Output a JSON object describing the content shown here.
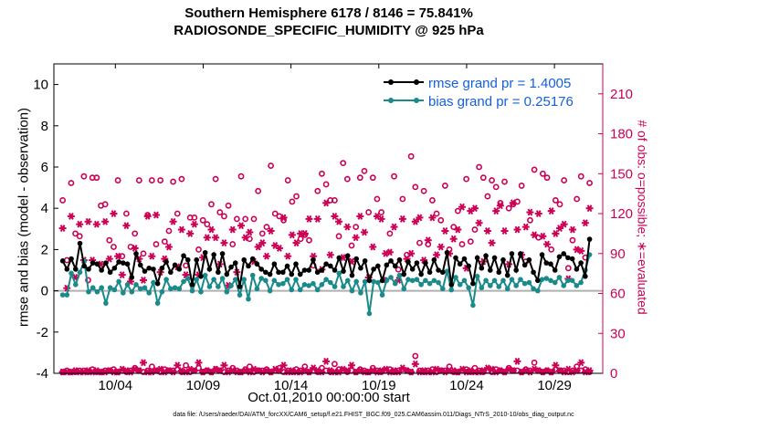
{
  "chart_data": {
    "type": "line",
    "title": "Southern Hemisphere 6178 / 8146 = 75.841%",
    "subtitle": "RADIOSONDE_SPECIFIC_HUMIDITY @ 925 hPa",
    "xlabel": "Oct.01,2010 00:00:00 start",
    "ylabel_left": "rmse and bias (model - observation)",
    "ylabel_right": "# of obs: o=possible; ∗=evaluated",
    "footnote": "data file: /Users/raeder/DAI/ATM_forcXX/CAM6_setup/f.e21.FHIST_BGC.f09_025.CAM6assim.011/Diags_NTrS_2010-10/obs_diag_output.nc",
    "x_range": [
      0.5,
      31.75
    ],
    "x_ticks": [
      4,
      9,
      14,
      19,
      24,
      29
    ],
    "x_tick_labels": [
      "10/04",
      "10/09",
      "10/14",
      "10/19",
      "10/24",
      "10/29"
    ],
    "ylim": [
      -4,
      11
    ],
    "y_ticks": [
      -4,
      -2,
      0,
      2,
      4,
      6,
      8,
      10
    ],
    "y2lim": [
      0,
      232.5
    ],
    "y2_ticks": [
      0,
      30,
      60,
      90,
      120,
      150,
      180,
      210
    ],
    "legend_position": "top-right",
    "series": [
      {
        "name": "rmse",
        "legend": "rmse grand pr = 1.4005",
        "color": "#000000",
        "values": [
          1.45,
          1.05,
          1.55,
          1.05,
          2.3,
          1.2,
          1.05,
          1.35,
          1.3,
          1.0,
          1.35,
          0.9,
          1.1,
          1.4,
          1.35,
          1.3,
          0.65,
          1.8,
          1.25,
          0.95,
          1.1,
          1.05,
          0.35,
          1.1,
          1.4,
          0.9,
          1.25,
          1.05,
          1.7,
          1.5,
          0.3,
          1.5,
          0.7,
          1.85,
          1.05,
          1.75,
          0.9,
          1.8,
          0.8,
          1.15,
          1.35,
          0.2,
          1.5,
          1.2,
          1.55,
          1.3,
          1.05,
          0.9,
          0.8,
          1.3,
          0.9,
          0.9,
          1.2,
          0.8,
          1.3,
          0.8,
          1.0,
          1.0,
          1.5,
          0.9,
          1.0,
          1.3,
          1.2,
          1.0,
          1.6,
          0.95,
          1.7,
          0.75,
          1.55,
          1.1,
          1.45,
          0.5,
          1.05,
          1.2,
          0.5,
          1.25,
          1.45,
          1.2,
          1.5,
          0.8,
          1.4,
          1.05,
          1.35,
          0.8,
          1.35,
          0.9,
          1.5,
          1.0,
          0.9,
          1.85,
          0.3,
          1.6,
          1.3,
          1.55,
          1.2,
          0.35,
          1.6,
          1.1,
          1.7,
          1.0,
          1.6,
          0.9,
          1.5,
          0.75,
          1.8,
          1.0,
          1.8,
          1.25,
          1.5,
          0.9,
          0.5,
          1.75,
          1.35,
          1.3,
          1.0,
          1.65,
          1.8,
          1.6,
          1.55,
          1.05,
          1.35,
          0.7,
          2.5
        ]
      },
      {
        "name": "bias",
        "legend": "bias grand pr = 0.25176",
        "color": "#1a8a8a",
        "values": [
          -0.2,
          -0.2,
          0.85,
          0.3,
          0.9,
          1.45,
          -0.05,
          0.15,
          -0.05,
          0.15,
          -0.6,
          0.15,
          0.05,
          0.45,
          -0.1,
          0.3,
          -0.05,
          0.3,
          0.1,
          0.15,
          -0.1,
          0.4,
          -0.6,
          -0.05,
          0.55,
          0.1,
          0.15,
          0.1,
          0.45,
          0.6,
          0.0,
          0.55,
          -0.05,
          0.75,
          0.2,
          0.55,
          0.2,
          0.6,
          -0.05,
          0.25,
          0.55,
          -0.2,
          0.55,
          -0.4,
          0.75,
          0.1,
          0.6,
          0.5,
          0.0,
          0.5,
          0.3,
          0.35,
          0.55,
          0.05,
          0.55,
          0.05,
          0.3,
          0.25,
          0.35,
          0.05,
          0.3,
          0.55,
          0.4,
          0.2,
          0.85,
          0.2,
          0.5,
          0.0,
          0.45,
          -0.1,
          0.45,
          -1.1,
          0.45,
          0.4,
          -0.2,
          0.5,
          0.65,
          0.35,
          0.75,
          0.1,
          0.55,
          0.5,
          0.55,
          0.3,
          0.5,
          0.35,
          0.5,
          0.4,
          0.1,
          0.95,
          0.05,
          0.65,
          0.3,
          0.5,
          0.15,
          -0.7,
          0.7,
          0.15,
          0.5,
          0.25,
          0.5,
          0.2,
          0.5,
          0.1,
          0.55,
          0.25,
          0.55,
          0.35,
          0.4,
          0.1,
          0.0,
          0.55,
          0.6,
          0.5,
          0.4,
          0.65,
          0.25,
          0.5,
          0.5,
          0.25,
          0.4,
          1.0,
          1.75
        ]
      },
      {
        "name": "possible",
        "marker": "o",
        "axis": "right",
        "color": "#cc0055",
        "values": [
          130,
          85,
          143,
          105,
          103,
          148,
          70,
          147,
          147,
          126,
          127,
          100,
          95,
          145,
          88,
          120,
          95,
          105,
          145,
          90,
          119,
          145,
          97,
          145,
          99,
          107,
          144,
          120,
          146,
          81,
          117,
          117,
          93,
          115,
          112,
          127,
          146,
          121,
          118,
          126,
          97,
          116,
          148,
          116,
          101,
          116,
          137,
          105,
          110,
          156,
          120,
          118,
          115,
          145,
          129,
          133,
          101,
          104,
          100,
          81,
          137,
          150,
          142,
          130,
          130,
          103,
          158,
          146,
          96,
          110,
          147,
          152,
          121,
          147,
          131,
          121,
          70,
          105,
          148,
          78,
          131,
          89,
          163,
          140,
          98,
          137,
          97,
          130,
          120,
          115,
          141,
          93,
          110,
          122,
          97,
          146,
          99,
          108,
          155,
          147,
          133,
          145,
          140,
          128,
          144,
          124,
          127,
          129,
          141,
          84,
          115,
          153,
          102,
          150,
          147,
          93,
          130,
          127,
          145,
          79,
          100,
          131,
          148,
          87,
          143
        ]
      },
      {
        "name": "evaluated",
        "marker": "*",
        "axis": "right",
        "color": "#cc0055",
        "values": [
          109,
          64,
          118,
          72,
          112,
          85,
          114,
          85,
          112,
          82,
          114,
          86,
          120,
          88,
          74,
          111,
          69,
          94,
          86,
          70,
          118,
          88,
          119,
          76,
          86,
          95,
          114,
          80,
          108,
          74,
          105,
          112,
          74,
          87,
          102,
          108,
          102,
          82,
          98,
          66,
          108,
          76,
          111,
          102,
          106,
          84,
          95,
          98,
          88,
          107,
          96,
          94,
          117,
          88,
          104,
          98,
          105,
          105,
          116,
          88,
          116,
          78,
          128,
          89,
          118,
          114,
          87,
          110,
          84,
          102,
          118,
          106,
          72,
          95,
          118,
          116,
          90,
          91,
          110,
          70,
          116,
          86,
          90,
          114,
          117,
          85,
          100,
          117,
          89,
          95,
          107,
          90,
          101,
          108,
          125,
          79,
          122,
          124,
          113,
          84,
          107,
          98,
          122,
          126,
          107,
          82,
          128,
          108,
          89,
          110,
          121,
          104,
          120,
          103,
          97,
          122,
          105,
          109,
          112,
          71,
          108,
          93,
          92,
          113,
          124
        ]
      },
      {
        "name": "possible_low",
        "marker": "o",
        "axis": "right",
        "color": "#cc0055",
        "values": [
          1,
          2,
          1,
          1,
          2,
          2,
          1,
          3,
          1,
          1,
          2,
          2,
          3,
          1,
          2,
          1,
          2,
          4,
          2,
          1,
          2,
          5,
          2,
          1,
          3,
          2,
          2,
          3,
          1,
          6,
          1,
          2,
          4,
          1,
          2,
          1,
          3,
          2,
          1,
          2,
          4,
          2,
          1,
          3,
          5,
          1,
          2,
          2,
          3,
          1,
          2,
          4,
          1,
          2,
          1,
          3,
          2,
          5,
          1,
          2,
          1,
          4,
          2,
          1,
          7,
          3,
          2,
          1,
          2,
          1,
          3,
          2,
          1,
          4,
          2,
          1,
          2,
          3,
          1,
          2,
          3,
          2,
          1,
          13,
          2,
          1,
          2,
          3,
          1,
          2,
          2,
          5,
          1,
          1,
          2,
          3,
          1,
          4,
          2,
          1,
          2,
          1,
          3,
          2,
          1,
          4,
          2,
          2,
          1,
          3,
          2,
          8,
          2,
          1,
          2,
          1,
          3,
          2,
          2,
          1,
          2,
          5,
          2,
          3,
          1
        ]
      },
      {
        "name": "evaluated_low",
        "marker": "*",
        "axis": "right",
        "color": "#cc0055",
        "values": [
          1,
          1,
          1,
          2,
          1,
          1,
          2,
          1,
          2,
          1,
          1,
          2,
          1,
          1,
          3,
          2,
          1,
          3,
          2,
          8,
          1,
          1,
          2,
          3,
          1,
          2,
          1,
          6,
          2,
          1,
          3,
          2,
          8,
          1,
          2,
          1,
          3,
          2,
          6,
          1,
          2,
          1,
          1,
          2,
          1,
          3,
          2,
          1,
          2,
          1,
          3,
          2,
          6,
          1,
          2,
          1,
          1,
          2,
          1,
          4,
          2,
          1,
          9,
          2,
          1,
          1,
          3,
          2,
          6,
          1,
          2,
          1,
          1,
          2,
          1,
          2,
          3,
          1,
          2,
          1,
          4,
          2,
          1,
          7,
          1,
          2,
          1,
          1,
          3,
          2,
          1,
          2,
          2,
          1,
          3,
          1,
          2,
          1,
          1,
          2,
          4,
          3,
          1,
          2,
          1,
          3,
          2,
          9,
          1,
          2,
          1,
          3,
          2,
          1,
          2,
          1,
          6,
          2,
          1,
          3,
          1,
          2,
          8,
          1,
          2
        ]
      }
    ]
  }
}
